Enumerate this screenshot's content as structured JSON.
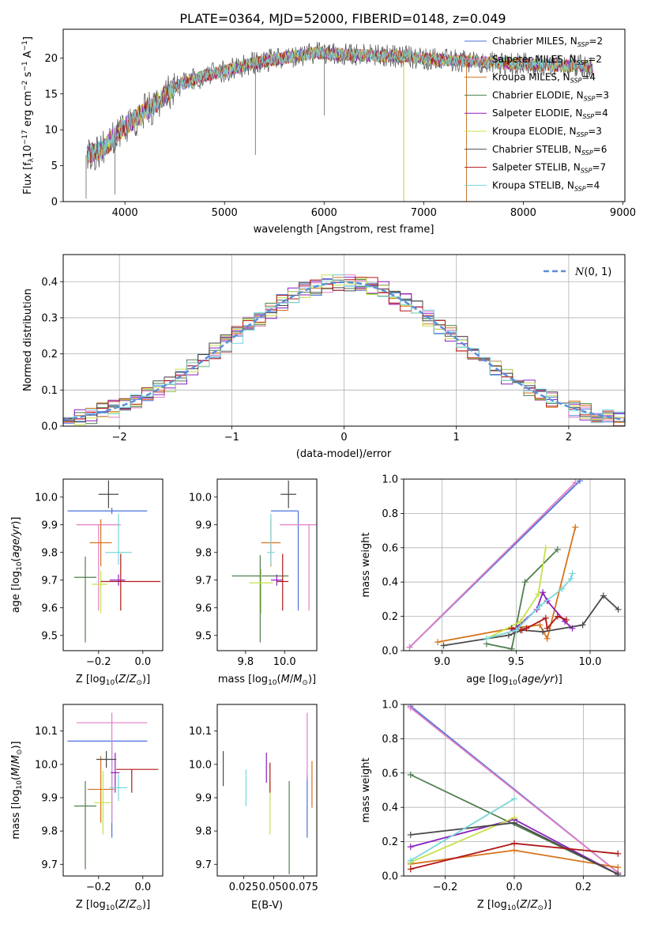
{
  "figure_title": "PLATE=0364, MJD=52000, FIBERID=0148, z=0.049",
  "colors": [
    "#4c72dd",
    "#e37fc4",
    "#d6731c",
    "#4f7f4f",
    "#8c1fbe",
    "#c8e04a",
    "#4a4a4a",
    "#b01818",
    "#7ad6da"
  ],
  "chart_data": [
    {
      "id": "spectrum",
      "type": "line",
      "xlabel": "wavelength [Angstrom, rest frame]",
      "ylabel": "Flux [fλ10⁻¹⁷ erg cm⁻² s⁻¹ A⁻¹]",
      "xlim": [
        3380,
        9020
      ],
      "ylim": [
        0,
        24
      ],
      "xticks": [
        4000,
        5000,
        6000,
        7000,
        8000,
        9000
      ],
      "yticks": [
        0,
        5,
        10,
        15,
        20
      ],
      "continuum_knots": {
        "x": [
          3620,
          3800,
          3950,
          4100,
          4300,
          4500,
          4800,
          5000,
          5300,
          5600,
          5900,
          6200,
          6500,
          6800,
          7100,
          7500,
          7900,
          8300,
          8700
        ],
        "y": [
          6.5,
          7.5,
          10.0,
          11.5,
          13.5,
          16.0,
          17.5,
          18.2,
          19.3,
          20.0,
          20.7,
          20.5,
          20.3,
          20.2,
          19.8,
          19.5,
          19.2,
          19.0,
          18.8
        ]
      },
      "dips": [
        {
          "x": 5310,
          "y": 6.5
        },
        {
          "x": 6003,
          "y": 12.0
        },
        {
          "x": 3610,
          "y": 0.4
        },
        {
          "x": 3900,
          "y": 1.0
        },
        {
          "x": 6800,
          "y": 0.0
        },
        {
          "x": 7430,
          "y": 0.0
        }
      ],
      "legend": [
        {
          "base": "Chabrier MILES, N",
          "sub": "SSP",
          "tail": "=2"
        },
        {
          "base": "Salpeter MILES, N",
          "sub": "SSP",
          "tail": "=2"
        },
        {
          "base": "Kroupa MILES, N",
          "sub": "SSP",
          "tail": "=4"
        },
        {
          "base": "Chabrier ELODIE, N",
          "sub": "SSP",
          "tail": "=3"
        },
        {
          "base": "Salpeter ELODIE, N",
          "sub": "SSP",
          "tail": "=4"
        },
        {
          "base": "Kroupa ELODIE, N",
          "sub": "SSP",
          "tail": "=3"
        },
        {
          "base": "Chabrier STELIB, N",
          "sub": "SSP",
          "tail": "=6"
        },
        {
          "base": "Salpeter STELIB, N",
          "sub": "SSP",
          "tail": "=7"
        },
        {
          "base": "Kroupa STELIB, N",
          "sub": "SSP",
          "tail": "=4"
        }
      ],
      "legend_placement": "upper right",
      "grid": false
    },
    {
      "id": "residuals",
      "type": "histogram",
      "xlabel": "(data-model)/error",
      "ylabel": "Normed distribution",
      "xlim": [
        -2.5,
        2.5
      ],
      "ylim": [
        0,
        0.475
      ],
      "xticks": [
        -2,
        -1,
        0,
        1,
        2
      ],
      "yticks": [
        0.0,
        0.1,
        0.2,
        0.3,
        0.4
      ],
      "bin_width": 0.1,
      "reference_curve": {
        "label": "N(0,1)",
        "style": "dashed",
        "color": "#5b8ed6"
      },
      "legend_placement": "upper right",
      "grid": true
    },
    {
      "id": "age_vs_Z",
      "type": "errorbar",
      "xlabel": "Z [log10(Z/Z⊙)]",
      "ylabel": "age [log10(age/yr)]",
      "xlim": [
        -0.36,
        0.09
      ],
      "ylim": [
        9.445,
        10.065
      ],
      "xticks": [
        -0.2,
        0.0
      ],
      "yticks": [
        9.5,
        9.6,
        9.7,
        9.8,
        9.9,
        10.0
      ],
      "grid": false,
      "points": [
        {
          "x": -0.14,
          "xerr": [
            0.2,
            0.16
          ],
          "y": 9.95,
          "yerr": [
            0.0,
            0.0
          ]
        },
        {
          "x": -0.2,
          "xerr": [
            0.1,
            0.1
          ],
          "y": 9.9,
          "yerr": [
            0.31,
            0.0
          ]
        },
        {
          "x": -0.19,
          "xerr": [
            0.05,
            0.05
          ],
          "y": 9.835,
          "yerr": [
            0.085,
            0.085
          ]
        },
        {
          "x": -0.26,
          "xerr": [
            0.05,
            0.05
          ],
          "y": 9.71,
          "yerr": [
            0.235,
            0.075
          ]
        },
        {
          "x": -0.11,
          "xerr": [
            0.04,
            0.03
          ],
          "y": 9.7,
          "yerr": [
            0.02,
            0.02
          ]
        },
        {
          "x": -0.19,
          "xerr": [
            0.04,
            0.03
          ],
          "y": 9.685,
          "yerr": [
            0.105,
            0.05
          ]
        },
        {
          "x": -0.155,
          "xerr": [
            0.045,
            0.045
          ],
          "y": 10.01,
          "yerr": [
            0.05,
            0.05
          ]
        },
        {
          "x": -0.1,
          "xerr": [
            0.09,
            0.18
          ],
          "y": 9.695,
          "yerr": [
            0.105,
            0.1
          ]
        },
        {
          "x": -0.11,
          "xerr": [
            0.06,
            0.06
          ],
          "y": 9.8,
          "yerr": [
            0.045,
            0.14
          ]
        }
      ]
    },
    {
      "id": "age_vs_mass",
      "type": "errorbar",
      "xlabel": "mass [log10(M/M⊙)]",
      "ylabel": "",
      "xlim": [
        9.655,
        10.165
      ],
      "ylim": [
        9.445,
        10.065
      ],
      "xticks": [
        9.8,
        10.0
      ],
      "yticks": [
        9.5,
        9.6,
        9.7,
        9.8,
        9.9,
        10.0
      ],
      "grid": false,
      "points": [
        {
          "x": 10.07,
          "xerr": [
            0.14,
            0.0
          ],
          "y": 9.95,
          "yerr": [
            0.36,
            0.0
          ]
        },
        {
          "x": 10.125,
          "xerr": [
            0.15,
            0.15
          ],
          "y": 9.9,
          "yerr": [
            0.31,
            0.0
          ]
        },
        {
          "x": 9.93,
          "xerr": [
            0.05,
            0.05
          ],
          "y": 9.835,
          "yerr": [
            0.085,
            0.085
          ]
        },
        {
          "x": 9.875,
          "xerr": [
            0.145,
            0.145
          ],
          "y": 9.715,
          "yerr": [
            0.24,
            0.075
          ]
        },
        {
          "x": 9.96,
          "xerr": [
            0.03,
            0.03
          ],
          "y": 9.7,
          "yerr": [
            0.02,
            0.02
          ]
        },
        {
          "x": 9.88,
          "xerr": [
            0.06,
            0.06
          ],
          "y": 9.69,
          "yerr": [
            0.11,
            0.05
          ]
        },
        {
          "x": 10.02,
          "xerr": [
            0.04,
            0.04
          ],
          "y": 10.01,
          "yerr": [
            0.05,
            0.05
          ]
        },
        {
          "x": 9.99,
          "xerr": [
            0.03,
            0.03
          ],
          "y": 9.695,
          "yerr": [
            0.105,
            0.1
          ]
        },
        {
          "x": 9.93,
          "xerr": [
            0.02,
            0.02
          ],
          "y": 9.8,
          "yerr": [
            0.045,
            0.14
          ]
        }
      ]
    },
    {
      "id": "weight_vs_age",
      "type": "line",
      "xlabel": "age [log10(age/yr)]",
      "ylabel": "mass weight",
      "xlim": [
        8.74,
        10.235
      ],
      "ylim": [
        0,
        1.0
      ],
      "xticks": [
        9.0,
        9.5,
        10.0
      ],
      "yticks": [
        0.0,
        0.2,
        0.4,
        0.6,
        0.8,
        1.0
      ],
      "grid": true,
      "series": [
        {
          "x": [
            8.78,
            9.93
          ],
          "y": [
            0.02,
            0.99
          ]
        },
        {
          "x": [
            8.78,
            9.9
          ],
          "y": [
            0.02,
            0.98
          ]
        },
        {
          "x": [
            8.97,
            9.47,
            9.66,
            9.71,
            9.9
          ],
          "y": [
            0.05,
            0.13,
            0.15,
            0.07,
            0.72
          ]
        },
        {
          "x": [
            9.3,
            9.47,
            9.56,
            9.78
          ],
          "y": [
            0.04,
            0.01,
            0.4,
            0.59
          ]
        },
        {
          "x": [
            9.48,
            9.64,
            9.68,
            9.71,
            9.83,
            9.88
          ],
          "y": [
            0.12,
            0.24,
            0.34,
            0.29,
            0.17,
            0.13
          ]
        },
        {
          "x": [
            9.3,
            9.53,
            9.65,
            9.7
          ],
          "y": [
            0.07,
            0.17,
            0.33,
            0.6
          ]
        },
        {
          "x": [
            9.01,
            9.45,
            9.54,
            9.68,
            9.95,
            10.09,
            10.19
          ],
          "y": [
            0.03,
            0.09,
            0.12,
            0.11,
            0.15,
            0.32,
            0.24
          ]
        },
        {
          "x": [
            9.47,
            9.53,
            9.57,
            9.7,
            9.71,
            9.78,
            9.84
          ],
          "y": [
            0.13,
            0.12,
            0.13,
            0.19,
            0.13,
            0.2,
            0.18
          ]
        },
        {
          "x": [
            9.3,
            9.5,
            9.66,
            9.81,
            9.87,
            9.88
          ],
          "y": [
            0.07,
            0.12,
            0.26,
            0.36,
            0.42,
            0.45
          ]
        }
      ]
    },
    {
      "id": "mass_vs_Z",
      "type": "errorbar",
      "xlabel": "Z [log10(Z/Z⊙)]",
      "ylabel": "mass [log10(M/M⊙)]",
      "xlim": [
        -0.36,
        0.09
      ],
      "ylim": [
        9.665,
        10.18
      ],
      "xticks": [
        -0.2,
        0.0
      ],
      "yticks": [
        9.7,
        9.8,
        9.9,
        10.0,
        10.1
      ],
      "grid": false,
      "points": [
        {
          "x": -0.14,
          "xerr": [
            0.2,
            0.16
          ],
          "y": 10.07,
          "yerr": [
            0.29,
            0.0
          ]
        },
        {
          "x": -0.14,
          "xerr": [
            0.16,
            0.16
          ],
          "y": 10.125,
          "yerr": [
            0.3,
            0.03
          ]
        },
        {
          "x": -0.19,
          "xerr": [
            0.06,
            0.06
          ],
          "y": 9.925,
          "yerr": [
            0.1,
            0.1
          ]
        },
        {
          "x": -0.26,
          "xerr": [
            0.05,
            0.05
          ],
          "y": 9.875,
          "yerr": [
            0.19,
            0.075
          ]
        },
        {
          "x": -0.125,
          "xerr": [
            0.02,
            0.02
          ],
          "y": 9.975,
          "yerr": [
            0.06,
            0.06
          ]
        },
        {
          "x": -0.18,
          "xerr": [
            0.04,
            0.04
          ],
          "y": 9.885,
          "yerr": [
            0.095,
            0.095
          ]
        },
        {
          "x": -0.165,
          "xerr": [
            0.045,
            0.045
          ],
          "y": 10.015,
          "yerr": [
            0.025,
            0.025
          ]
        },
        {
          "x": -0.05,
          "xerr": [
            0.07,
            0.12
          ],
          "y": 9.985,
          "yerr": [
            0.07,
            0.0
          ]
        },
        {
          "x": -0.11,
          "xerr": [
            0.04,
            0.04
          ],
          "y": 9.93,
          "yerr": [
            0.04,
            0.04
          ]
        }
      ]
    },
    {
      "id": "mass_vs_EBV",
      "type": "errorbar",
      "xlabel": "E(B-V)",
      "ylabel": "",
      "xlim": [
        0.003,
        0.086
      ],
      "ylim": [
        9.665,
        10.18
      ],
      "xticks": [
        0.025,
        0.05,
        0.075
      ],
      "xticklabels": [
        "0.025",
        "0.050",
        "0.075"
      ],
      "yticks": [
        9.7,
        9.8,
        9.9,
        10.0,
        10.1
      ],
      "grid": false,
      "points": [
        {
          "x": 0.078,
          "xerr": [
            0,
            0
          ],
          "y": 9.97,
          "yerr": [
            0.19,
            0.0
          ]
        },
        {
          "x": 0.078,
          "xerr": [
            0,
            0
          ],
          "y": 9.985,
          "yerr": [
            0.03,
            0.17
          ]
        },
        {
          "x": 0.082,
          "xerr": [
            0,
            0
          ],
          "y": 9.95,
          "yerr": [
            0.08,
            0.06
          ]
        },
        {
          "x": 0.063,
          "xerr": [
            0,
            0
          ],
          "y": 9.79,
          "yerr": [
            0.12,
            0.16
          ]
        },
        {
          "x": 0.044,
          "xerr": [
            0,
            0
          ],
          "y": 9.99,
          "yerr": [
            0.045,
            0.045
          ]
        },
        {
          "x": 0.047,
          "xerr": [
            0,
            0
          ],
          "y": 9.87,
          "yerr": [
            0.08,
            0.08
          ]
        },
        {
          "x": 0.008,
          "xerr": [
            0,
            0
          ],
          "y": 10.0,
          "yerr": [
            0.065,
            0.04
          ]
        },
        {
          "x": 0.047,
          "xerr": [
            0,
            0
          ],
          "y": 9.96,
          "yerr": [
            0.045,
            0.045
          ]
        },
        {
          "x": 0.027,
          "xerr": [
            0,
            0
          ],
          "y": 9.93,
          "yerr": [
            0.055,
            0.055
          ]
        }
      ]
    },
    {
      "id": "weight_vs_Z",
      "type": "line",
      "xlabel": "Z [log10(Z/Z⊙)]",
      "ylabel": "mass weight",
      "xlim": [
        -0.32,
        0.32
      ],
      "ylim": [
        0,
        1.0
      ],
      "xticks": [
        -0.2,
        0.0,
        0.2
      ],
      "yticks": [
        0.0,
        0.2,
        0.4,
        0.6,
        0.8,
        1.0
      ],
      "grid": true,
      "series": [
        {
          "x": [
            -0.3,
            0.3
          ],
          "y": [
            0.99,
            0.02
          ]
        },
        {
          "x": [
            -0.3,
            0.3
          ],
          "y": [
            0.98,
            0.02
          ]
        },
        {
          "x": [
            -0.3,
            0.0,
            0.3
          ],
          "y": [
            0.07,
            0.15,
            0.05
          ]
        },
        {
          "x": [
            -0.3,
            0.3
          ],
          "y": [
            0.59,
            0.01
          ]
        },
        {
          "x": [
            -0.3,
            0.0,
            0.3
          ],
          "y": [
            0.17,
            0.33,
            0.01
          ]
        },
        {
          "x": [
            -0.3,
            0.0
          ],
          "y": [
            0.08,
            0.34
          ]
        },
        {
          "x": [
            -0.3,
            0.0,
            0.3
          ],
          "y": [
            0.24,
            0.31,
            0.01
          ]
        },
        {
          "x": [
            -0.3,
            0.0,
            0.3
          ],
          "y": [
            0.04,
            0.19,
            0.13
          ]
        },
        {
          "x": [
            -0.3,
            0.0
          ],
          "y": [
            0.09,
            0.45
          ]
        }
      ]
    }
  ]
}
